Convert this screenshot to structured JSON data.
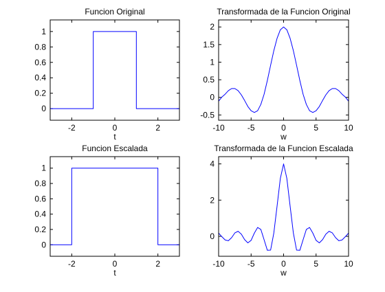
{
  "figure": {
    "background": "#ffffff",
    "line_color": "#0000ff"
  },
  "chart_data": [
    {
      "type": "line",
      "title": "Funcion Original",
      "xlabel": "t",
      "ylabel": "",
      "xlim": [
        -3,
        3
      ],
      "ylim": [
        -0.15,
        1.15
      ],
      "xticks": [
        -2,
        0,
        2
      ],
      "yticks": [
        0,
        0.2,
        0.4,
        0.6,
        0.8,
        1
      ],
      "ytick_labels": [
        "0",
        "0.2",
        "0.4",
        "0.6",
        "0.8",
        "1"
      ],
      "grid": false,
      "series": [
        {
          "x": [
            -3,
            -1,
            -1,
            1,
            1,
            3
          ],
          "y": [
            0,
            0,
            1,
            1,
            0,
            0
          ]
        }
      ]
    },
    {
      "type": "line",
      "title": "Transformada de la Funcion Original",
      "xlabel": "w",
      "ylabel": "",
      "xlim": [
        -10,
        10
      ],
      "ylim": [
        -0.65,
        2.2
      ],
      "xticks": [
        -10,
        -5,
        0,
        5,
        10
      ],
      "yticks": [
        -0.5,
        0,
        0.5,
        1,
        1.5,
        2
      ],
      "ytick_labels": [
        "-0.5",
        "0",
        "0.5",
        "1",
        "1.5",
        "2"
      ],
      "grid": false,
      "series": [
        {
          "x": [
            -10,
            -9.5,
            -9,
            -8.5,
            -8,
            -7.5,
            -7,
            -6.5,
            -6,
            -5.5,
            -5,
            -4.5,
            -4,
            -3.5,
            -3,
            -2.5,
            -2,
            -1.5,
            -1,
            -0.5,
            0,
            0.5,
            1,
            1.5,
            2,
            2.5,
            3,
            3.5,
            4,
            4.5,
            5,
            5.5,
            6,
            6.5,
            7,
            7.5,
            8,
            8.5,
            9,
            9.5,
            10
          ],
          "y": [
            -0.11,
            0.01,
            0.09,
            0.19,
            0.25,
            0.25,
            0.19,
            0.07,
            -0.09,
            -0.26,
            -0.38,
            -0.43,
            -0.38,
            -0.2,
            0.09,
            0.48,
            0.91,
            1.33,
            1.68,
            1.92,
            2.0,
            1.92,
            1.68,
            1.33,
            0.91,
            0.48,
            0.09,
            -0.2,
            -0.38,
            -0.43,
            -0.38,
            -0.26,
            -0.09,
            0.07,
            0.19,
            0.25,
            0.25,
            0.19,
            0.09,
            0.01,
            -0.11
          ]
        }
      ]
    },
    {
      "type": "line",
      "title": "Funcion Escalada",
      "xlabel": "t",
      "ylabel": "",
      "xlim": [
        -3,
        3
      ],
      "ylim": [
        -0.15,
        1.15
      ],
      "xticks": [
        -2,
        0,
        2
      ],
      "yticks": [
        0,
        0.2,
        0.4,
        0.6,
        0.8,
        1
      ],
      "ytick_labels": [
        "0",
        "0.2",
        "0.4",
        "0.6",
        "0.8",
        "1"
      ],
      "grid": false,
      "series": [
        {
          "x": [
            -3,
            -2,
            -2,
            2,
            2,
            3
          ],
          "y": [
            0,
            0,
            1,
            1,
            0,
            0
          ]
        }
      ]
    },
    {
      "type": "line",
      "title": "Transformada de la Funcion Escalada",
      "xlabel": "w",
      "ylabel": "",
      "xlim": [
        -10,
        10
      ],
      "ylim": [
        -1.1,
        4.4
      ],
      "xticks": [
        -10,
        -5,
        0,
        5,
        10
      ],
      "yticks": [
        0,
        2,
        4
      ],
      "ytick_labels": [
        "0",
        "2",
        "4"
      ],
      "grid": false,
      "series": [
        {
          "x": [
            -10,
            -9.5,
            -9,
            -8.5,
            -8,
            -7.5,
            -7,
            -6.5,
            -6,
            -5.5,
            -5,
            -4.5,
            -4,
            -3.5,
            -3,
            -2.5,
            -2,
            -1.5,
            -1,
            -0.5,
            0,
            0.5,
            1,
            1.5,
            2,
            2.5,
            3,
            3.5,
            4,
            4.5,
            5,
            5.5,
            6,
            6.5,
            7,
            7.5,
            8,
            8.5,
            9,
            9.5,
            10
          ],
          "y": [
            0.18,
            -0.02,
            -0.2,
            -0.24,
            -0.07,
            0.19,
            0.28,
            0.12,
            -0.18,
            -0.36,
            -0.22,
            0.18,
            0.49,
            0.38,
            -0.19,
            -0.77,
            -0.76,
            0.19,
            1.68,
            3.2,
            4.0,
            3.2,
            1.68,
            0.19,
            -0.76,
            -0.77,
            -0.19,
            0.38,
            0.49,
            0.18,
            -0.22,
            -0.36,
            -0.18,
            0.12,
            0.28,
            0.19,
            -0.07,
            -0.24,
            -0.2,
            -0.02,
            0.18
          ]
        }
      ]
    }
  ]
}
